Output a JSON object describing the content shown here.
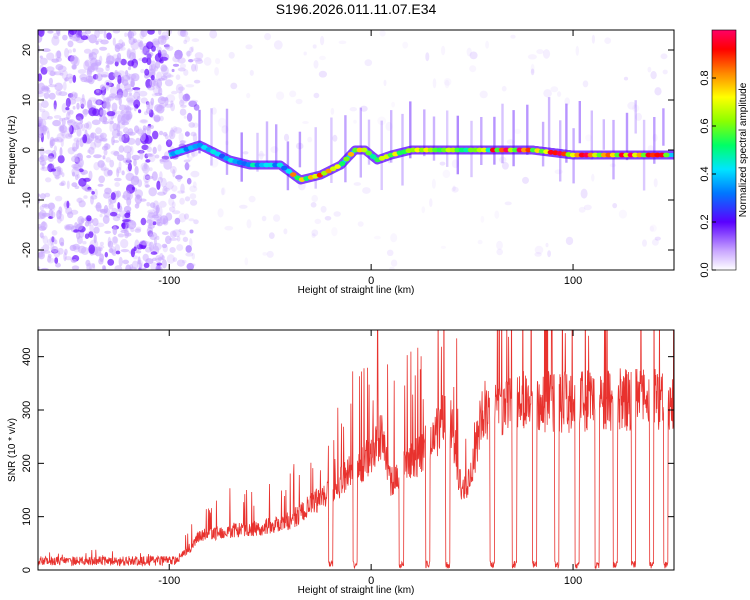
{
  "chart_data": [
    {
      "type": "heatmap",
      "title": "S196.2026.011.11.07.E34",
      "xlabel": "Height of straight line (km)",
      "ylabel": "Frequency (Hz)",
      "xlim": [
        -165,
        150
      ],
      "ylim": [
        -24,
        24
      ],
      "xticks": [
        -100,
        0,
        100
      ],
      "xtick_labels": [
        "-100",
        "0",
        "100"
      ],
      "yticks": [
        -20,
        -10,
        0,
        10,
        20
      ],
      "ytick_labels": [
        "-20",
        "-10",
        "0",
        "10",
        "20"
      ],
      "colorbar": {
        "label": "Normalized spectral amplitude",
        "range": [
          0,
          1
        ],
        "ticks": [
          0.0,
          0.2,
          0.4,
          0.6,
          0.8
        ],
        "tick_labels": [
          "0.0",
          "0.2",
          "0.4",
          "0.6",
          "0.8"
        ]
      },
      "ridge": {
        "description_points_x": [
          -165,
          -100,
          -85,
          -70,
          -60,
          -45,
          -35,
          -25,
          -15,
          -8,
          -3,
          3,
          10,
          20,
          40,
          60,
          80,
          100,
          120,
          150
        ],
        "description_points_y": [
          0,
          -1,
          1,
          -2,
          -3,
          -3,
          -6,
          -5,
          -3,
          0,
          0,
          -2,
          -1,
          0,
          0,
          0,
          0,
          -1,
          -1,
          -1
        ]
      },
      "grid": false
    },
    {
      "type": "line",
      "xlabel": "Height of straight line (km)",
      "ylabel": "SNR (10 * v/v)",
      "xlim": [
        -165,
        150
      ],
      "ylim": [
        0,
        450
      ],
      "xticks": [
        -100,
        0,
        100
      ],
      "xtick_labels": [
        "-100",
        "0",
        "100"
      ],
      "yticks": [
        0,
        100,
        200,
        300,
        400
      ],
      "ytick_labels": [
        "0",
        "100",
        "200",
        "300",
        "400"
      ],
      "series": [
        {
          "name": "SNR",
          "color": "#e8322e",
          "envelope_x": [
            -165,
            -100,
            -90,
            -85,
            -70,
            -55,
            -40,
            -30,
            -20,
            -10,
            0,
            5,
            10,
            20,
            30,
            35,
            40,
            45,
            50,
            55,
            60,
            70,
            80,
            90,
            100,
            110,
            120,
            130,
            140,
            150
          ],
          "envelope_y": [
            15,
            18,
            40,
            70,
            80,
            85,
            100,
            130,
            160,
            200,
            230,
            270,
            180,
            220,
            260,
            300,
            290,
            150,
            200,
            320,
            330,
            340,
            340,
            340,
            340,
            345,
            345,
            345,
            350,
            345
          ],
          "dropouts_x": [
            -20,
            -8,
            15,
            28,
            38,
            60,
            71,
            81,
            92,
            102,
            112,
            121,
            130,
            139,
            146
          ]
        }
      ],
      "grid": false
    }
  ]
}
